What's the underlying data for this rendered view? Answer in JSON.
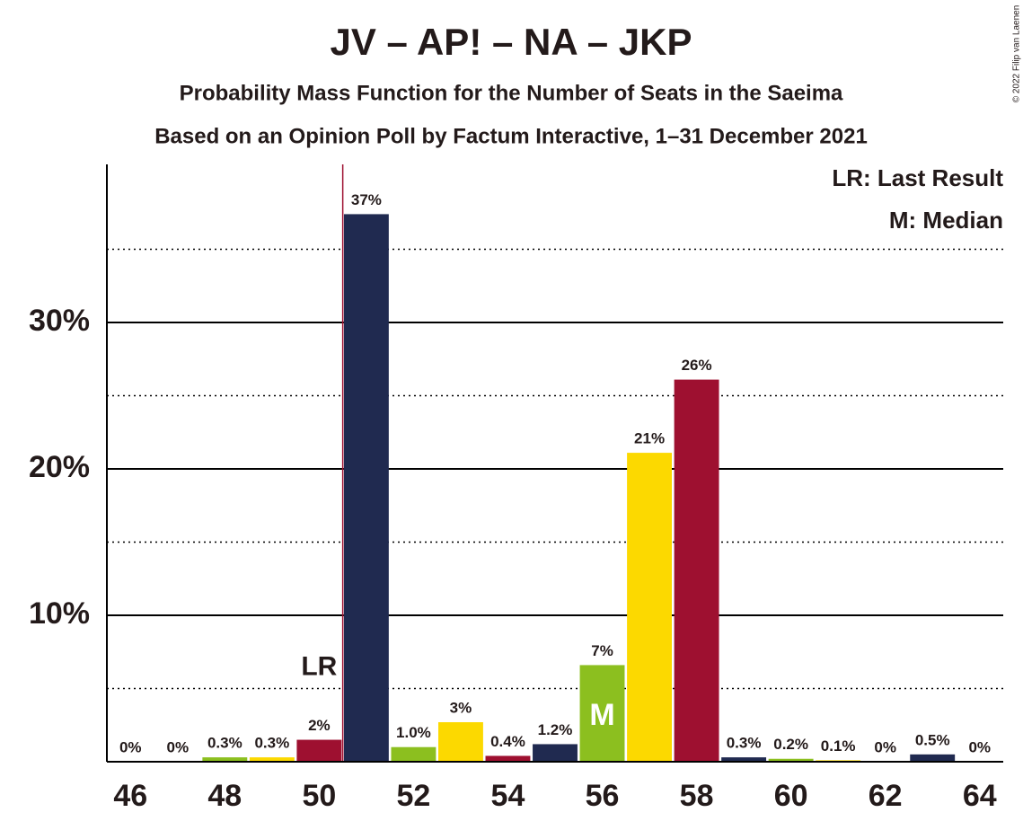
{
  "chart_data": {
    "type": "bar",
    "title": "JV – AP! – NA – JKP",
    "subtitle": "Probability Mass Function for the Number of Seats in the Saeima",
    "subtitle2": "Based on an Opinion Poll by Factum Interactive, 1–31 December 2021",
    "copyright": "© 2022 Filip van Laenen",
    "x": [
      46,
      47,
      48,
      49,
      50,
      51,
      52,
      53,
      54,
      55,
      56,
      57,
      58,
      59,
      60,
      61,
      62,
      63,
      64
    ],
    "values": [
      0,
      0,
      0.3,
      0.3,
      1.5,
      37.4,
      1.0,
      2.7,
      0.4,
      1.2,
      6.6,
      21.1,
      26.1,
      0.3,
      0.2,
      0.1,
      0,
      0.5,
      0
    ],
    "value_labels": [
      "0%",
      "0%",
      "0.3%",
      "0.3%",
      "2%",
      "37%",
      "1.0%",
      "3%",
      "0.4%",
      "1.2%",
      "7%",
      "21%",
      "26%",
      "0.3%",
      "0.2%",
      "0.1%",
      "0%",
      "0.5%",
      "0%"
    ],
    "colors": [
      "#9e1030",
      "#202a50",
      "#8cbf1f",
      "#fcd900",
      "#9e1030",
      "#202a50",
      "#8cbf1f",
      "#fcd900",
      "#9e1030",
      "#202a50",
      "#8cbf1f",
      "#fcd900",
      "#9e1030",
      "#202a50",
      "#8cbf1f",
      "#fcd900",
      "#9e1030",
      "#202a50",
      "#8cbf1f"
    ],
    "xlim": [
      45.5,
      64.5
    ],
    "xticks": [
      46,
      48,
      50,
      52,
      54,
      56,
      58,
      60,
      62,
      64
    ],
    "ylim": [
      0,
      40.8
    ],
    "yticks": [
      {
        "value": 10,
        "label": "10%"
      },
      {
        "value": 20,
        "label": "20%"
      },
      {
        "value": 30,
        "label": "30%"
      }
    ],
    "minor_yticks": [
      5,
      15,
      25,
      35
    ],
    "grid": true,
    "last_result_line": 50.5,
    "annotations": [
      {
        "text": "LR",
        "x": 50
      },
      {
        "text": "M",
        "x": 56
      }
    ],
    "legend": [
      "LR: Last Result",
      "M: Median"
    ]
  }
}
